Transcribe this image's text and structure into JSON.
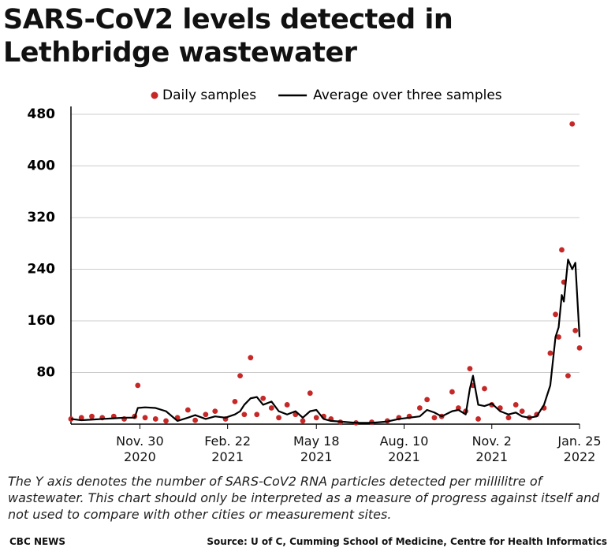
{
  "chart_data": {
    "type": "line",
    "title": "SARS-CoV2 levels detected in Lethbridge wastewater",
    "note": "The Y axis denotes the number of SARS-CoV2 RNA particles detected per millilitre of wastewater. This chart should only be interpreted as a measure of progress against itself and not used to compare with other cities or measurement sites.",
    "brand": "CBC NEWS",
    "source": "Source: U of C, Cumming School of Medicine, Centre for Health Informatics",
    "xlim": [
      "2020-09-25",
      "2022-01-25"
    ],
    "xticks": [
      {
        "value": "2020-11-30",
        "label": "Nov. 30 2020"
      },
      {
        "value": "2021-02-22",
        "label": "Feb. 22 2021"
      },
      {
        "value": "2021-05-18",
        "label": "May 18 2021"
      },
      {
        "value": "2021-08-10",
        "label": "Aug. 10 2021"
      },
      {
        "value": "2021-11-02",
        "label": "Nov. 2 2021"
      },
      {
        "value": "2022-01-25",
        "label": "Jan. 25 2022"
      }
    ],
    "ylim": [
      0,
      480
    ],
    "yticks": [
      80,
      160,
      240,
      320,
      400,
      480
    ],
    "grid": true,
    "x": [
      "2020-09-25",
      "2020-10-05",
      "2020-10-15",
      "2020-10-25",
      "2020-11-05",
      "2020-11-15",
      "2020-11-25",
      "2020-11-28",
      "2020-12-05",
      "2020-12-15",
      "2020-12-25",
      "2021-01-05",
      "2021-01-15",
      "2021-01-22",
      "2021-02-01",
      "2021-02-10",
      "2021-02-20",
      "2021-03-01",
      "2021-03-06",
      "2021-03-10",
      "2021-03-16",
      "2021-03-22",
      "2021-03-28",
      "2021-04-05",
      "2021-04-12",
      "2021-04-20",
      "2021-04-28",
      "2021-05-05",
      "2021-05-12",
      "2021-05-18",
      "2021-05-25",
      "2021-06-01",
      "2021-06-10",
      "2021-06-25",
      "2021-07-10",
      "2021-07-25",
      "2021-08-05",
      "2021-08-15",
      "2021-08-25",
      "2021-09-01",
      "2021-09-08",
      "2021-09-15",
      "2021-09-25",
      "2021-10-01",
      "2021-10-08",
      "2021-10-12",
      "2021-10-15",
      "2021-10-20",
      "2021-10-26",
      "2021-11-02",
      "2021-11-10",
      "2021-11-18",
      "2021-11-25",
      "2021-12-01",
      "2021-12-08",
      "2021-12-15",
      "2021-12-22",
      "2021-12-28",
      "2022-01-02",
      "2022-01-05",
      "2022-01-08",
      "2022-01-10",
      "2022-01-14",
      "2022-01-18",
      "2022-01-21",
      "2022-01-25"
    ],
    "series": [
      {
        "name": "Daily samples",
        "style": "markers",
        "color": "#c62828",
        "values": [
          8,
          10,
          12,
          10,
          12,
          8,
          12,
          60,
          10,
          8,
          5,
          10,
          22,
          6,
          15,
          20,
          8,
          35,
          75,
          15,
          103,
          15,
          40,
          25,
          10,
          30,
          15,
          5,
          48,
          10,
          12,
          8,
          3,
          2,
          3,
          5,
          10,
          12,
          25,
          38,
          10,
          12,
          50,
          25,
          20,
          86,
          60,
          8,
          55,
          30,
          25,
          10,
          30,
          20,
          10,
          15,
          25,
          110,
          170,
          135,
          270,
          220,
          75,
          465,
          145,
          118
        ]
      },
      {
        "name": "Average over three samples",
        "style": "line",
        "color": "#000000",
        "values": [
          8,
          6,
          7,
          8,
          9,
          10,
          10,
          25,
          26,
          25,
          20,
          5,
          10,
          14,
          8,
          12,
          10,
          15,
          20,
          30,
          40,
          42,
          30,
          35,
          20,
          15,
          20,
          10,
          20,
          22,
          8,
          5,
          4,
          2,
          2,
          4,
          8,
          10,
          12,
          22,
          18,
          12,
          20,
          22,
          15,
          55,
          75,
          30,
          28,
          32,
          20,
          15,
          18,
          12,
          10,
          12,
          30,
          60,
          135,
          150,
          200,
          190,
          255,
          240,
          250,
          135
        ]
      }
    ]
  }
}
